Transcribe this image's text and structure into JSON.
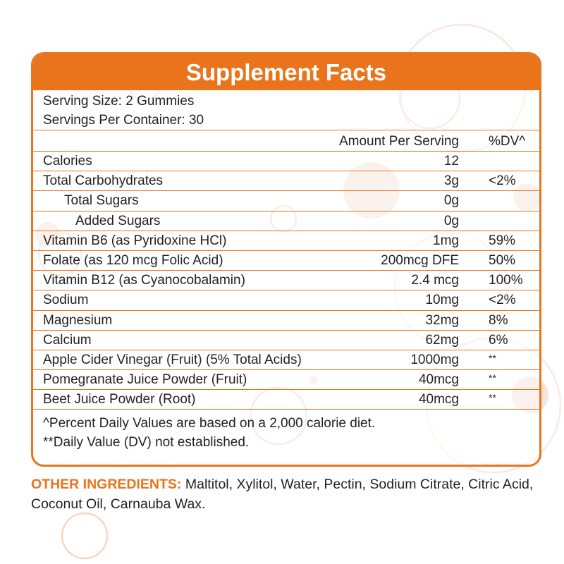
{
  "colors": {
    "accent": "#e9741c",
    "text": "#231f20",
    "bubble": "#f7d6c7"
  },
  "title": "Supplement Facts",
  "serving": {
    "size": "Serving Size: 2 Gummies",
    "per_container": "Servings Per Container: 30"
  },
  "header": {
    "amount": "Amount Per Serving",
    "dv": "%DV^"
  },
  "rows": [
    {
      "name": "Calories",
      "amount": "12",
      "dv": ""
    },
    {
      "name": "Total Carbohydrates",
      "amount": "3g",
      "dv": "<2%"
    },
    {
      "name": "Total Sugars",
      "amount": "0g",
      "dv": ""
    },
    {
      "name": "Added Sugars",
      "amount": "0g",
      "dv": ""
    },
    {
      "name": "Vitamin B6 (as Pyridoxine HCl)",
      "amount": "1mg",
      "dv": "59%"
    },
    {
      "name": "Folate (as 120 mcg Folic Acid)",
      "amount": "200mcg DFE",
      "dv": "50%"
    },
    {
      "name": "Vitamin B12 (as Cyanocobalamin)",
      "amount": "2.4 mcg",
      "dv": "100%"
    },
    {
      "name": "Sodium",
      "amount": "10mg",
      "dv": "<2%"
    },
    {
      "name": "Magnesium",
      "amount": "32mg",
      "dv": "8%"
    },
    {
      "name": "Calcium",
      "amount": "62mg",
      "dv": "6%"
    },
    {
      "name": "Apple Cider Vinegar (Fruit) (5% Total Acids)",
      "amount": "1000mg",
      "dv": "**"
    },
    {
      "name": "Pomegranate Juice Powder (Fruit)",
      "amount": "40mcg",
      "dv": "**"
    },
    {
      "name": "Beet Juice Powder (Root)",
      "amount": "40mcg",
      "dv": "**"
    }
  ],
  "footnotes": {
    "dv_basis": "^Percent Daily Values are based on a 2,000 calorie diet.",
    "not_established": "**Daily Value (DV) not established."
  },
  "other_ingredients": {
    "label": "OTHER INGREDIENTS:",
    "text": " Maltitol, Xylitol, Water, Pectin, Sodium Citrate, Citric Acid, Coconut Oil, Carnauba Wax."
  }
}
